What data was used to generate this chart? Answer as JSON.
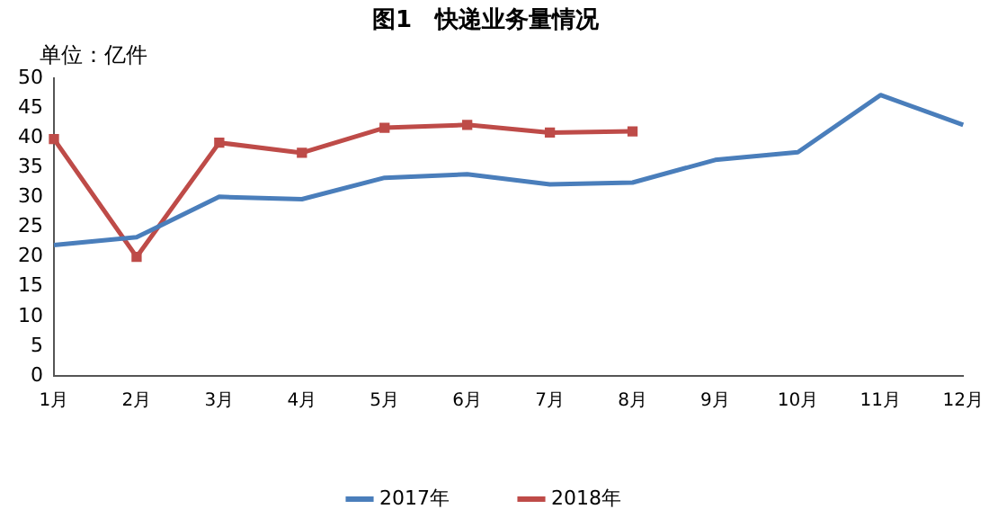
{
  "chart_data": {
    "type": "line",
    "title": "图1　快递业务量情况",
    "ylabel": "单位：亿件",
    "categories": [
      "1月",
      "2月",
      "3月",
      "4月",
      "5月",
      "6月",
      "7月",
      "8月",
      "9月",
      "10月",
      "11月",
      "12月"
    ],
    "series": [
      {
        "name": "2017年",
        "color": "#4a7ebb",
        "marker": "none",
        "values": [
          22,
          23.3,
          30.1,
          29.7,
          33.3,
          33.9,
          32.2,
          32.5,
          36.3,
          37.6,
          47.2,
          42.2
        ]
      },
      {
        "name": "2018年",
        "color": "#be4b48",
        "marker": "square",
        "values": [
          39.8,
          20,
          39.2,
          37.5,
          41.7,
          42.2,
          40.9,
          41.1,
          null,
          null,
          null,
          null
        ]
      }
    ],
    "ylim": [
      0,
      50
    ],
    "yticks": [
      0,
      5,
      10,
      15,
      20,
      25,
      30,
      35,
      40,
      45,
      50
    ],
    "grid": false,
    "legend": "bottom"
  }
}
